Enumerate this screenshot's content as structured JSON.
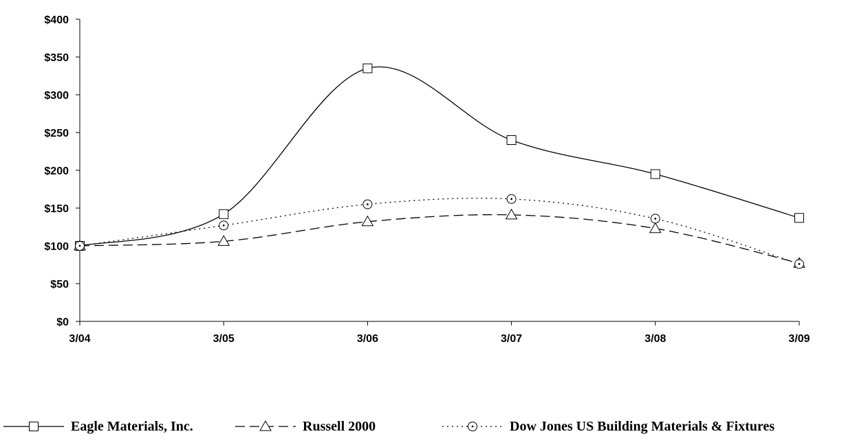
{
  "chart_data": {
    "type": "line",
    "title": "",
    "xlabel": "",
    "ylabel": "",
    "categories": [
      "3/04",
      "3/05",
      "3/06",
      "3/07",
      "3/08",
      "3/09"
    ],
    "ylim": [
      0,
      400
    ],
    "yticks": [
      0,
      50,
      100,
      150,
      200,
      250,
      300,
      350,
      400
    ],
    "ytick_labels": [
      "$0",
      "$50",
      "$100",
      "$150",
      "$200",
      "$250",
      "$300",
      "$350",
      "$400"
    ],
    "grid": false,
    "legend_position": "bottom",
    "series": [
      {
        "name": "Eagle Materials, Inc.",
        "values": [
          100,
          142,
          335,
          240,
          195,
          137
        ],
        "marker": "square",
        "line_style": "solid",
        "color": "#000000"
      },
      {
        "name": "Russell 2000",
        "values": [
          100,
          106,
          132,
          141,
          123,
          77
        ],
        "marker": "triangle",
        "line_style": "dashed",
        "color": "#000000"
      },
      {
        "name": "Dow Jones US Building Materials & Fixtures",
        "values": [
          100,
          127,
          155,
          162,
          136,
          76
        ],
        "marker": "circle",
        "line_style": "dotted",
        "color": "#000000"
      }
    ]
  }
}
